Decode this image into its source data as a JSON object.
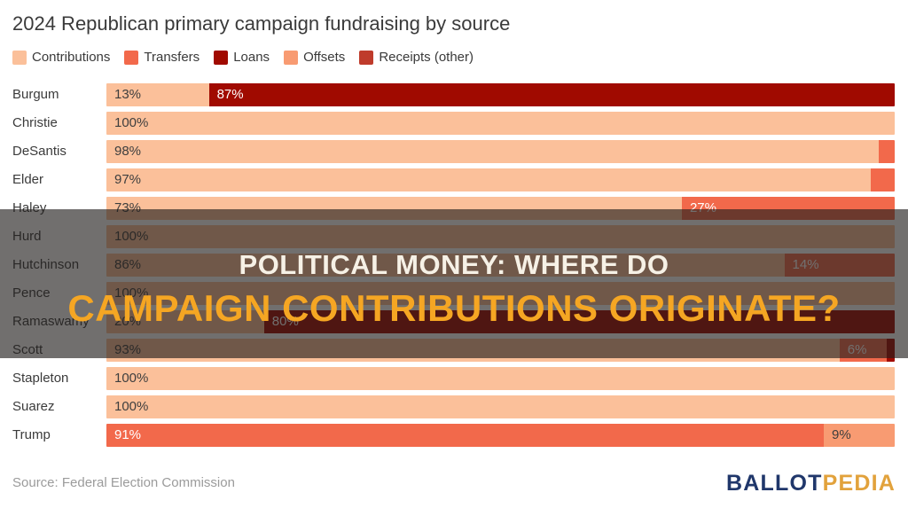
{
  "title": "2024 Republican primary campaign fundraising by source",
  "legend": [
    {
      "label": "Contributions",
      "color": "#FBC09A"
    },
    {
      "label": "Transfers",
      "color": "#F2694B"
    },
    {
      "label": "Loans",
      "color": "#A00A00"
    },
    {
      "label": "Offsets",
      "color": "#F89B72"
    },
    {
      "label": "Receipts (other)",
      "color": "#BF3B2B"
    }
  ],
  "banner": {
    "line1": "POLITICAL MONEY: WHERE DO",
    "line2": "CAMPAIGN CONTRIBUTIONS ORIGINATE?",
    "line1_color": "#F6F1E6",
    "line2_color": "#F5A623",
    "overlay_color": "rgba(33,30,28,0.64)"
  },
  "source_note": "Source: Federal Election Commission",
  "logo": {
    "part1": "BALLOT",
    "part2": "PEDIA",
    "part1_color": "#20376B",
    "part2_color": "#E2A23C"
  },
  "chart_data": {
    "type": "bar",
    "orientation": "horizontal-stacked",
    "unit": "%",
    "xlim": [
      0,
      100
    ],
    "title": "2024 Republican primary campaign fundraising by source",
    "legend_position": "top",
    "sources": [
      "Contributions",
      "Transfers",
      "Loans",
      "Offsets",
      "Receipts (other)"
    ],
    "colors": {
      "Contributions": "#FBC09A",
      "Transfers": "#F2694B",
      "Loans": "#A00A00",
      "Offsets": "#F89B72",
      "Receipts (other)": "#BF3B2B"
    },
    "categories": [
      "Burgum",
      "Christie",
      "DeSantis",
      "Elder",
      "Haley",
      "Hurd",
      "Hutchinson",
      "Pence",
      "Ramaswamy",
      "Scott",
      "Stapleton",
      "Suarez",
      "Trump"
    ],
    "rows": [
      {
        "candidate": "Burgum",
        "segments": [
          {
            "source": "Contributions",
            "value": 13,
            "label": "13%"
          },
          {
            "source": "Loans",
            "value": 87,
            "label": "87%"
          }
        ]
      },
      {
        "candidate": "Christie",
        "segments": [
          {
            "source": "Contributions",
            "value": 100,
            "label": "100%"
          }
        ]
      },
      {
        "candidate": "DeSantis",
        "segments": [
          {
            "source": "Contributions",
            "value": 98,
            "label": "98%"
          },
          {
            "source": "Transfers",
            "value": 2,
            "label": ""
          }
        ]
      },
      {
        "candidate": "Elder",
        "segments": [
          {
            "source": "Contributions",
            "value": 97,
            "label": "97%"
          },
          {
            "source": "Transfers",
            "value": 3,
            "label": ""
          }
        ]
      },
      {
        "candidate": "Haley",
        "segments": [
          {
            "source": "Contributions",
            "value": 73,
            "label": "73%"
          },
          {
            "source": "Transfers",
            "value": 27,
            "label": "27%"
          }
        ]
      },
      {
        "candidate": "Hurd",
        "segments": [
          {
            "source": "Contributions",
            "value": 100,
            "label": "100%"
          }
        ]
      },
      {
        "candidate": "Hutchinson",
        "segments": [
          {
            "source": "Contributions",
            "value": 86,
            "label": "86%"
          },
          {
            "source": "Transfers",
            "value": 14,
            "label": "14%"
          }
        ]
      },
      {
        "candidate": "Pence",
        "segments": [
          {
            "source": "Contributions",
            "value": 100,
            "label": "100%"
          }
        ]
      },
      {
        "candidate": "Ramaswamy",
        "segments": [
          {
            "source": "Contributions",
            "value": 20,
            "label": "20%"
          },
          {
            "source": "Loans",
            "value": 80,
            "label": "80%"
          }
        ]
      },
      {
        "candidate": "Scott",
        "segments": [
          {
            "source": "Contributions",
            "value": 93,
            "label": "93%"
          },
          {
            "source": "Transfers",
            "value": 6,
            "label": "6%"
          },
          {
            "source": "Loans",
            "value": 1,
            "label": ""
          }
        ]
      },
      {
        "candidate": "Stapleton",
        "segments": [
          {
            "source": "Contributions",
            "value": 100,
            "label": "100%"
          }
        ]
      },
      {
        "candidate": "Suarez",
        "segments": [
          {
            "source": "Contributions",
            "value": 100,
            "label": "100%"
          }
        ]
      },
      {
        "candidate": "Trump",
        "segments": [
          {
            "source": "Transfers",
            "value": 91,
            "label": "91%"
          },
          {
            "source": "Offsets",
            "value": 9,
            "label": "9%"
          }
        ]
      }
    ]
  }
}
